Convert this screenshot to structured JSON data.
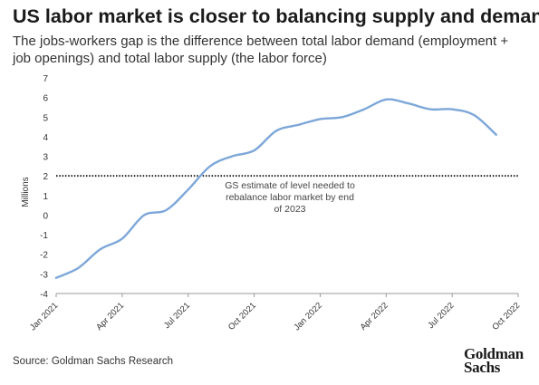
{
  "header": {
    "title": "US labor market is closer to balancing supply and demand",
    "subtitle": "The jobs-workers gap is the difference between total labor demand (employment + job openings) and total labor supply (the labor force)"
  },
  "footer": {
    "source": "Source: Goldman Sachs Research",
    "logo_line1": "Goldman",
    "logo_line2": "Sachs"
  },
  "chart_data": {
    "type": "line",
    "title": "",
    "xlabel": "",
    "ylabel": "Millions",
    "ylim": [
      -4,
      7
    ],
    "yticks": [
      -4,
      -3,
      -2,
      -1,
      0,
      1,
      2,
      3,
      4,
      5,
      6,
      7
    ],
    "xlim": [
      "2021-01",
      "2022-10"
    ],
    "xticks": [
      "Jan 2021",
      "Apr 2021",
      "Jul 2021",
      "Oct 2021",
      "Jan 2022",
      "Apr 2022",
      "Jul 2022",
      "Oct 2022"
    ],
    "grid": false,
    "legend": "none",
    "series": [
      {
        "color": "#7da7d9",
        "x": [
          "2021-01",
          "2021-02",
          "2021-03",
          "2021-04",
          "2021-05",
          "2021-06",
          "2021-07",
          "2021-08",
          "2021-09",
          "2021-10",
          "2021-11",
          "2021-12",
          "2022-01",
          "2022-02",
          "2022-03",
          "2022-04",
          "2022-05",
          "2022-06",
          "2022-07",
          "2022-08",
          "2022-09"
        ],
        "y": [
          -3.2,
          -2.7,
          -1.75,
          -1.2,
          0.0,
          0.25,
          1.3,
          2.5,
          3.0,
          3.3,
          4.3,
          4.6,
          4.9,
          5.0,
          5.4,
          5.9,
          5.7,
          5.4,
          5.4,
          5.1,
          4.1
        ]
      }
    ],
    "reference_line": {
      "y": 2,
      "style": "dotted",
      "color": "#222222",
      "annotation": "GS estimate of level needed to rebalance labor market by end of 2023",
      "annotation_lines": [
        "GS estimate of level needed to",
        "rebalance labor market by end",
        "of 2023"
      ]
    }
  }
}
